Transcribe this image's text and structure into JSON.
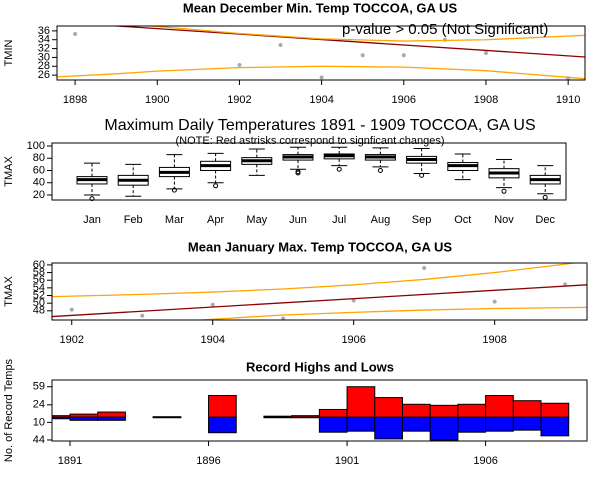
{
  "chart_data": [
    {
      "type": "scatter",
      "title": "Mean December Min. Temp TOCCOA, GA US",
      "ylabel": "TMIN",
      "annotation": "p-value > 0.05 (Not Significant)",
      "xlim": [
        1897.56,
        1910.41
      ],
      "ylim": [
        24.9,
        37.1
      ],
      "xticks": [
        1898,
        1900,
        1902,
        1904,
        1906,
        1908,
        1910
      ],
      "yticks": [
        26,
        28,
        30,
        32,
        34,
        36
      ],
      "series": [
        {
          "type": "points",
          "color": "#aaaaaa",
          "x": [
            1898,
            1902,
            1903,
            1904,
            1905,
            1906,
            1907,
            1908,
            1910
          ],
          "values": [
            35.3,
            28.3,
            32.8,
            25.5,
            30.5,
            30.5,
            34,
            31,
            25.3
          ]
        },
        {
          "type": "line",
          "color": "#8b0000",
          "x": [
            1897.56,
            1910.41
          ],
          "values": [
            38.0,
            30.1
          ]
        },
        {
          "type": "line",
          "color": "#ffa500",
          "x": [
            1897.56,
            1899,
            1900,
            1902,
            1904,
            1906,
            1908,
            1910.41
          ],
          "values": [
            38.6,
            37.8,
            37.0,
            35.4,
            34.2,
            33.7,
            34.0,
            35.0
          ]
        },
        {
          "type": "line",
          "color": "#ffa500",
          "x": [
            1897.56,
            1899,
            1900,
            1902,
            1904,
            1906,
            1908,
            1910.41
          ],
          "values": [
            25.6,
            26.3,
            26.9,
            27.7,
            28.0,
            27.8,
            27.0,
            25.2
          ]
        }
      ]
    },
    {
      "type": "box",
      "title": "Maximum Daily Temperatures 1891 - 1909 TOCCOA, GA US",
      "subtitle": "(NOTE: Red astrisks correspond to signficant changes)",
      "ylabel": "TMAX",
      "ylim": [
        11.8,
        104.9
      ],
      "yticks": [
        20,
        40,
        60,
        80,
        100
      ],
      "categories": [
        "Jan",
        "Feb",
        "Mar",
        "Apr",
        "May",
        "Jun",
        "Jul",
        "Aug",
        "Sep",
        "Oct",
        "Nov",
        "Dec"
      ],
      "min": [
        20,
        18,
        30,
        40,
        52,
        62,
        68,
        66,
        55,
        45,
        32,
        22
      ],
      "q1": [
        38,
        36,
        50,
        60,
        70,
        77,
        79,
        77,
        72,
        60,
        48,
        38
      ],
      "median": [
        45,
        44,
        57,
        68,
        76,
        82,
        84,
        82,
        78,
        68,
        56,
        45
      ],
      "q3": [
        50,
        52,
        65,
        75,
        81,
        86,
        87,
        86,
        83,
        73,
        63,
        52
      ],
      "max": [
        72,
        70,
        86,
        88,
        95,
        98,
        98,
        97,
        96,
        87,
        78,
        68
      ],
      "outliers": [
        [
          14
        ],
        [],
        [
          28
        ],
        [
          35
        ],
        [],
        [
          56,
          58
        ],
        [
          62
        ],
        [
          60
        ],
        [
          52
        ],
        [],
        [
          26
        ],
        [
          16
        ]
      ]
    },
    {
      "type": "scatter",
      "title": "Mean January Max. Temp TOCCOA, GA US",
      "ylabel": "TMAX",
      "xlim": [
        1901.72,
        1909.31
      ],
      "ylim": [
        45.6,
        60.5
      ],
      "xticks": [
        1902,
        1904,
        1906,
        1908
      ],
      "yticks": [
        48,
        50,
        52,
        54,
        56,
        58,
        60
      ],
      "series": [
        {
          "type": "points",
          "color": "#aaaaaa",
          "x": [
            1902,
            1903,
            1904,
            1905,
            1906,
            1907,
            1908,
            1909
          ],
          "values": [
            48.3,
            46.7,
            49.6,
            46.0,
            50.7,
            59.2,
            50.4,
            54.9
          ]
        },
        {
          "type": "line",
          "color": "#8b0000",
          "x": [
            1901.72,
            1909.31
          ],
          "values": [
            46.5,
            54.8
          ]
        },
        {
          "type": "line",
          "color": "#ffa500",
          "x": [
            1901.72,
            1903,
            1904,
            1905,
            1906,
            1907,
            1908,
            1909,
            1909.31
          ],
          "values": [
            51.7,
            52.3,
            52.9,
            53.7,
            54.8,
            56.2,
            58.0,
            60.2,
            61.0
          ]
        },
        {
          "type": "line",
          "color": "#ffa500",
          "x": [
            1903,
            1904,
            1905,
            1906,
            1907,
            1908,
            1909.31
          ],
          "values": [
            44.6,
            45.8,
            46.9,
            47.6,
            48.2,
            48.6,
            48.9
          ]
        }
      ]
    },
    {
      "type": "bar",
      "title": "Record Highs and Lows",
      "ylabel": "No. of Record Temps",
      "xlim": [
        1890.35,
        1909.66
      ],
      "ylim": [
        -46,
        72
      ],
      "xticks": [
        1891,
        1896,
        1901,
        1906
      ],
      "yticks": [
        59,
        24
      ],
      "yticks_down": [
        10,
        44
      ],
      "x": [
        1890,
        1891,
        1892,
        1894,
        1896,
        1898,
        1899,
        1900,
        1901,
        1902,
        1903,
        1904,
        1905,
        1906,
        1907,
        1908
      ],
      "series": [
        {
          "color": "#ff0000",
          "direction": "up",
          "values": [
            3,
            6,
            10,
            1,
            42,
            2,
            3,
            15,
            59,
            38,
            25,
            23,
            25,
            42,
            32,
            27
          ]
        },
        {
          "color": "#0000ff",
          "direction": "down",
          "values": [
            3,
            6,
            6,
            1,
            30,
            1,
            1,
            29,
            27,
            42,
            27,
            44,
            29,
            27,
            25,
            36
          ]
        }
      ]
    }
  ]
}
